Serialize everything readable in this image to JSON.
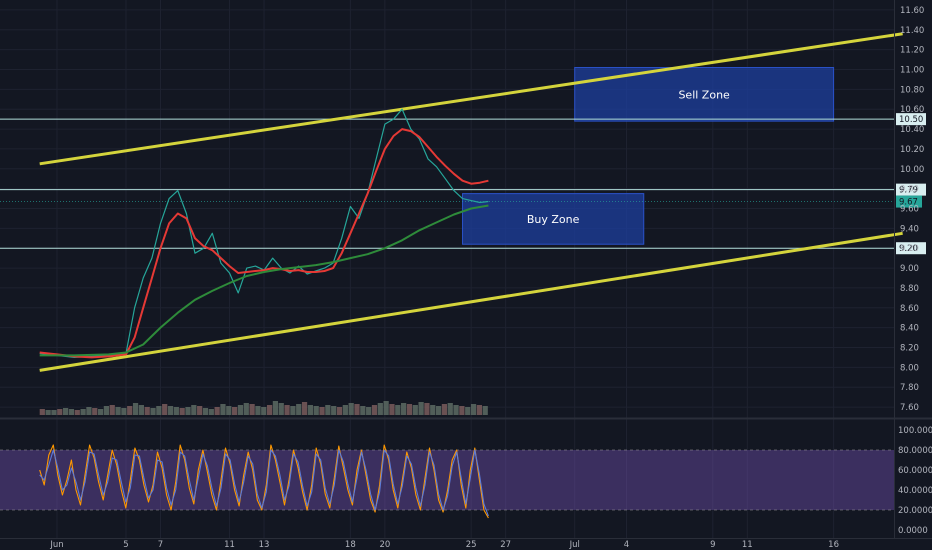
{
  "chart_data": {
    "type": "line",
    "background": "#131722",
    "price_axis": {
      "ticks": [
        "11.60",
        "11.40",
        "11.20",
        "11.00",
        "10.80",
        "10.60",
        "10.40",
        "10.20",
        "10.00",
        "9.80",
        "9.60",
        "9.40",
        "9.20",
        "9.00",
        "8.80",
        "8.60",
        "8.40",
        "8.20",
        "8.00",
        "7.80",
        "7.60"
      ],
      "ylim": [
        7.5,
        11.7
      ]
    },
    "oscillator_axis": {
      "ticks": [
        "100.0000",
        "80.0000",
        "60.0000",
        "40.0000",
        "20.0000",
        "0.0000"
      ],
      "ylim": [
        0,
        100
      ],
      "band": [
        20,
        80
      ],
      "band_color": "#7e57c2"
    },
    "time_axis": {
      "labels": [
        {
          "label": "Jun",
          "day": 1
        },
        {
          "label": "5",
          "day": 5
        },
        {
          "label": "7",
          "day": 7
        },
        {
          "label": "11",
          "day": 11
        },
        {
          "label": "13",
          "day": 13
        },
        {
          "label": "18",
          "day": 18
        },
        {
          "label": "20",
          "day": 20
        },
        {
          "label": "25",
          "day": 25
        },
        {
          "label": "27",
          "day": 27
        },
        {
          "label": "Jul",
          "day": 31
        },
        {
          "label": "4",
          "day": 34
        },
        {
          "label": "9",
          "day": 39
        },
        {
          "label": "11",
          "day": 41
        },
        {
          "label": "16",
          "day": 46
        }
      ]
    },
    "horizontal_levels": [
      {
        "price": 10.5,
        "label": "10.50"
      },
      {
        "price": 9.79,
        "label": "9.79"
      },
      {
        "price": 9.2,
        "label": "9.20"
      }
    ],
    "last_price": {
      "price": 9.67,
      "label": "9.67",
      "color": "#26a69a"
    },
    "zones": [
      {
        "label": "Sell Zone",
        "day_from": 31,
        "day_to": 46,
        "price_from": 10.48,
        "price_to": 11.02
      },
      {
        "label": "Buy Zone",
        "day_from": 24.5,
        "day_to": 35,
        "price_from": 9.24,
        "price_to": 9.75
      }
    ],
    "trendlines": [
      {
        "name": "",
        "color": "#d4d43c",
        "points": [
          [
            0,
            10.05
          ],
          [
            50,
            11.36
          ]
        ]
      },
      {
        "name": "",
        "color": "#d4d43c",
        "points": [
          [
            0,
            7.97
          ],
          [
            50,
            9.35
          ]
        ]
      }
    ],
    "series": [
      {
        "name": "",
        "color": "#26a69a",
        "x": [
          0,
          1,
          2,
          3,
          4,
          5,
          5.5,
          6,
          6.5,
          7,
          7.5,
          8,
          8.5,
          9,
          9.5,
          10,
          10.5,
          11,
          11.5,
          12,
          12.5,
          13,
          13.5,
          14,
          14.5,
          15,
          15.5,
          16,
          16.5,
          17,
          17.5,
          18,
          18.5,
          19,
          19.5,
          20,
          20.5,
          21,
          21.5,
          22,
          22.5,
          23,
          23.5,
          24,
          24.5,
          25,
          25.5,
          26
        ],
        "values": [
          8.14,
          8.12,
          8.1,
          8.11,
          8.12,
          8.14,
          8.6,
          8.9,
          9.1,
          9.45,
          9.7,
          9.78,
          9.55,
          9.15,
          9.2,
          9.35,
          9.05,
          8.95,
          8.75,
          9.0,
          9.02,
          8.98,
          9.1,
          9.0,
          8.95,
          9.02,
          8.94,
          8.97,
          9.0,
          9.05,
          9.3,
          9.62,
          9.5,
          9.75,
          10.1,
          10.45,
          10.5,
          10.6,
          10.4,
          10.3,
          10.1,
          10.02,
          9.9,
          9.78,
          9.7,
          9.68,
          9.66,
          9.67
        ]
      },
      {
        "name": "",
        "color": "#e53935",
        "x": [
          0,
          1,
          2,
          3,
          4,
          5,
          5.5,
          6,
          6.5,
          7,
          7.5,
          8,
          8.5,
          9,
          9.5,
          10,
          10.5,
          11,
          11.5,
          12,
          12.5,
          13,
          13.5,
          14,
          14.5,
          15,
          15.5,
          16,
          16.5,
          17,
          17.5,
          18,
          18.5,
          19,
          19.5,
          20,
          20.5,
          21,
          21.5,
          22,
          22.5,
          23,
          23.5,
          24,
          24.5,
          25,
          25.5,
          26
        ],
        "values": [
          8.15,
          8.13,
          8.11,
          8.1,
          8.11,
          8.13,
          8.3,
          8.6,
          8.9,
          9.2,
          9.45,
          9.55,
          9.5,
          9.3,
          9.22,
          9.18,
          9.1,
          9.02,
          8.95,
          8.96,
          8.97,
          8.98,
          9.0,
          8.99,
          8.97,
          8.98,
          8.96,
          8.96,
          8.97,
          9.0,
          9.15,
          9.35,
          9.55,
          9.75,
          9.98,
          10.2,
          10.33,
          10.4,
          10.38,
          10.32,
          10.22,
          10.12,
          10.03,
          9.95,
          9.88,
          9.85,
          9.86,
          9.88
        ]
      },
      {
        "name": "",
        "color": "#2e8b3a",
        "x": [
          0,
          2,
          4,
          5,
          6,
          7,
          8,
          9,
          10,
          11,
          12,
          13,
          14,
          15,
          16,
          17,
          18,
          19,
          20,
          21,
          22,
          23,
          24,
          25,
          26
        ],
        "values": [
          8.12,
          8.12,
          8.13,
          8.15,
          8.23,
          8.4,
          8.55,
          8.68,
          8.77,
          8.85,
          8.92,
          8.96,
          8.99,
          9.01,
          9.03,
          9.06,
          9.1,
          9.14,
          9.2,
          9.28,
          9.38,
          9.46,
          9.54,
          9.6,
          9.63
        ]
      }
    ],
    "oscillator_series": [
      {
        "name": "",
        "color": "#ff9800",
        "values": [
          60,
          45,
          75,
          85,
          55,
          35,
          50,
          70,
          40,
          25,
          55,
          85,
          72,
          48,
          30,
          55,
          80,
          65,
          40,
          22,
          50,
          82,
          70,
          45,
          28,
          45,
          78,
          62,
          35,
          20,
          48,
          85,
          70,
          42,
          26,
          60,
          80,
          58,
          35,
          20,
          50,
          82,
          66,
          40,
          24,
          55,
          78,
          60,
          30,
          20,
          45,
          85,
          70,
          48,
          25,
          50,
          80,
          62,
          38,
          20,
          45,
          82,
          66,
          36,
          22,
          52,
          84,
          62,
          40,
          25,
          60,
          80,
          55,
          30,
          18,
          45,
          85,
          70,
          40,
          22,
          50,
          78,
          62,
          35,
          20,
          52,
          82,
          60,
          30,
          18,
          40,
          70,
          80,
          45,
          22,
          60,
          82,
          50,
          20,
          12
        ]
      },
      {
        "name": "",
        "color": "#5c7bd9",
        "values": [
          55,
          50,
          65,
          80,
          62,
          40,
          45,
          62,
          48,
          30,
          48,
          78,
          76,
          55,
          35,
          48,
          72,
          70,
          48,
          28,
          42,
          75,
          74,
          52,
          32,
          40,
          70,
          68,
          42,
          25,
          40,
          78,
          74,
          50,
          30,
          52,
          76,
          64,
          42,
          24,
          42,
          76,
          70,
          46,
          28,
          48,
          74,
          66,
          36,
          22,
          38,
          80,
          74,
          55,
          30,
          44,
          76,
          68,
          44,
          24,
          38,
          76,
          70,
          42,
          26,
          45,
          80,
          68,
          46,
          28,
          52,
          78,
          60,
          36,
          20,
          38,
          80,
          74,
          46,
          26,
          44,
          74,
          66,
          42,
          24,
          45,
          78,
          65,
          36,
          20,
          34,
          64,
          78,
          52,
          26,
          52,
          80,
          56,
          26,
          14
        ]
      }
    ],
    "volume": [
      6,
      5,
      5,
      6,
      7,
      6,
      5,
      6,
      8,
      7,
      6,
      9,
      10,
      8,
      7,
      9,
      12,
      10,
      8,
      7,
      9,
      11,
      9,
      8,
      7,
      8,
      10,
      9,
      7,
      6,
      8,
      11,
      9,
      8,
      10,
      12,
      11,
      9,
      8,
      10,
      14,
      12,
      10,
      9,
      11,
      13,
      10,
      9,
      8,
      10,
      9,
      8,
      10,
      12,
      11,
      9,
      8,
      10,
      12,
      14,
      11,
      10,
      12,
      11,
      10,
      13,
      12,
      10,
      9,
      11,
      12,
      10,
      9,
      8,
      11,
      10,
      9
    ]
  }
}
